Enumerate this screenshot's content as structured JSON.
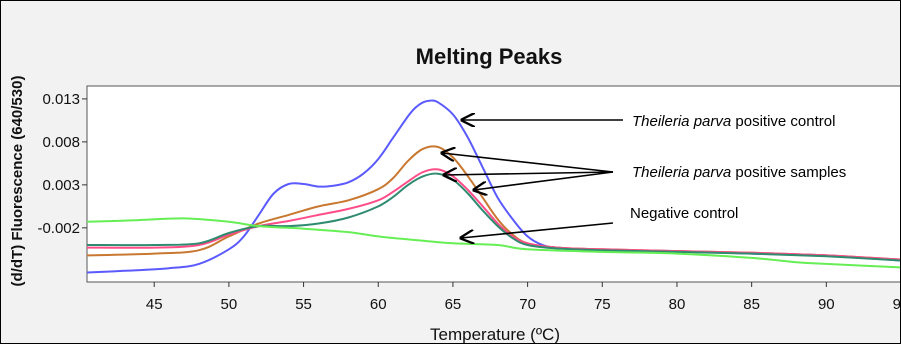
{
  "chart_data": {
    "type": "line",
    "title": "Melting Peaks",
    "ylabel": "(d/dT) Fluorescence (640/530)",
    "xlabel": "Temperature (ºC)",
    "xlim": [
      40.5,
      95
    ],
    "ylim": [
      -0.0083,
      0.0145
    ],
    "x_ticks": [
      45,
      50,
      55,
      60,
      65,
      70,
      75,
      80,
      85,
      90,
      95
    ],
    "x_tick_labels": [
      "45",
      "50",
      "55",
      "60",
      "65",
      "70",
      "75",
      "80",
      "85",
      "90",
      "95"
    ],
    "y_ticks": [
      0.013,
      0.008,
      0.003,
      -0.002
    ],
    "y_tick_labels": [
      "0.013",
      "0.008",
      "0.003",
      "-0.002"
    ],
    "grid": false,
    "series": [
      {
        "color": "#5a5aff",
        "x": [
          40.5,
          43,
          46,
          48,
          50,
          51,
          52,
          53,
          54,
          55,
          56,
          57,
          58,
          59,
          60,
          61,
          62,
          62.5,
          63,
          63.5,
          64,
          65,
          66,
          67,
          68,
          69,
          70,
          71,
          72,
          75,
          80,
          85,
          90,
          95
        ],
        "y": [
          -0.0072,
          -0.007,
          -0.0067,
          -0.0062,
          -0.0045,
          -0.003,
          -0.0005,
          0.002,
          0.0031,
          0.0031,
          0.0028,
          0.0029,
          0.0033,
          0.0043,
          0.006,
          0.0085,
          0.011,
          0.012,
          0.0126,
          0.0128,
          0.0126,
          0.0112,
          0.0085,
          0.005,
          0.0015,
          -0.001,
          -0.003,
          -0.004,
          -0.0043,
          -0.0046,
          -0.0047,
          -0.005,
          -0.0052,
          -0.0058
        ]
      },
      {
        "color": "#c87830",
        "x": [
          40.5,
          45,
          48,
          50,
          52,
          54,
          56,
          58,
          60,
          61,
          62,
          63,
          64,
          65,
          66,
          67,
          68,
          69,
          70,
          72,
          75,
          80,
          85,
          90,
          95
        ],
        "y": [
          -0.0052,
          -0.005,
          -0.0046,
          -0.003,
          -0.0015,
          -0.0005,
          0.0005,
          0.0012,
          0.0025,
          0.0038,
          0.0058,
          0.0072,
          0.0074,
          0.0062,
          0.004,
          0.0015,
          -0.001,
          -0.0028,
          -0.0038,
          -0.0043,
          -0.0045,
          -0.0047,
          -0.0049,
          -0.0052,
          -0.0057
        ]
      },
      {
        "color": "#ff4d88",
        "x": [
          40.5,
          45,
          48,
          50,
          52,
          54,
          56,
          58,
          60,
          61,
          62,
          63,
          64,
          65,
          66,
          67,
          68,
          69,
          70,
          72,
          75,
          80,
          85,
          90,
          95
        ],
        "y": [
          -0.0043,
          -0.0043,
          -0.004,
          -0.0028,
          -0.0018,
          -0.0012,
          -0.0005,
          0.0002,
          0.0012,
          0.0022,
          0.0034,
          0.0045,
          0.0048,
          0.004,
          0.0024,
          0.0005,
          -0.0015,
          -0.003,
          -0.0038,
          -0.0043,
          -0.0045,
          -0.0047,
          -0.0049,
          -0.0052,
          -0.0057
        ]
      },
      {
        "color": "#2e8b70",
        "x": [
          40.5,
          45,
          48,
          50,
          52,
          54,
          56,
          58,
          60,
          61,
          62,
          63,
          64,
          65,
          66,
          67,
          68,
          69,
          70,
          72,
          75,
          80,
          85,
          90,
          95
        ],
        "y": [
          -0.004,
          -0.004,
          -0.0038,
          -0.0026,
          -0.0018,
          -0.0018,
          -0.0015,
          -0.0008,
          0.0005,
          0.0016,
          0.003,
          0.004,
          0.0043,
          0.0036,
          0.002,
          0.0,
          -0.0018,
          -0.0032,
          -0.004,
          -0.0044,
          -0.0046,
          -0.0048,
          -0.005,
          -0.0053,
          -0.0058
        ]
      },
      {
        "color": "#66ee55",
        "x": [
          40.5,
          44,
          47,
          50,
          52,
          55,
          58,
          60,
          63,
          65,
          68,
          70,
          75,
          80,
          85,
          88,
          90,
          95
        ],
        "y": [
          -0.0013,
          -0.0011,
          -0.0009,
          -0.0013,
          -0.0018,
          -0.0021,
          -0.0025,
          -0.003,
          -0.0035,
          -0.0038,
          -0.004,
          -0.0045,
          -0.0048,
          -0.005,
          -0.0055,
          -0.006,
          -0.0062,
          -0.0066
        ]
      }
    ],
    "annotations": [
      {
        "prefix_italic": "Theileria parva",
        "text": " positive control"
      },
      {
        "prefix_italic": "Theileria parva",
        "text": " positive samples"
      },
      {
        "prefix_italic": "",
        "text": "Negative control"
      }
    ]
  }
}
